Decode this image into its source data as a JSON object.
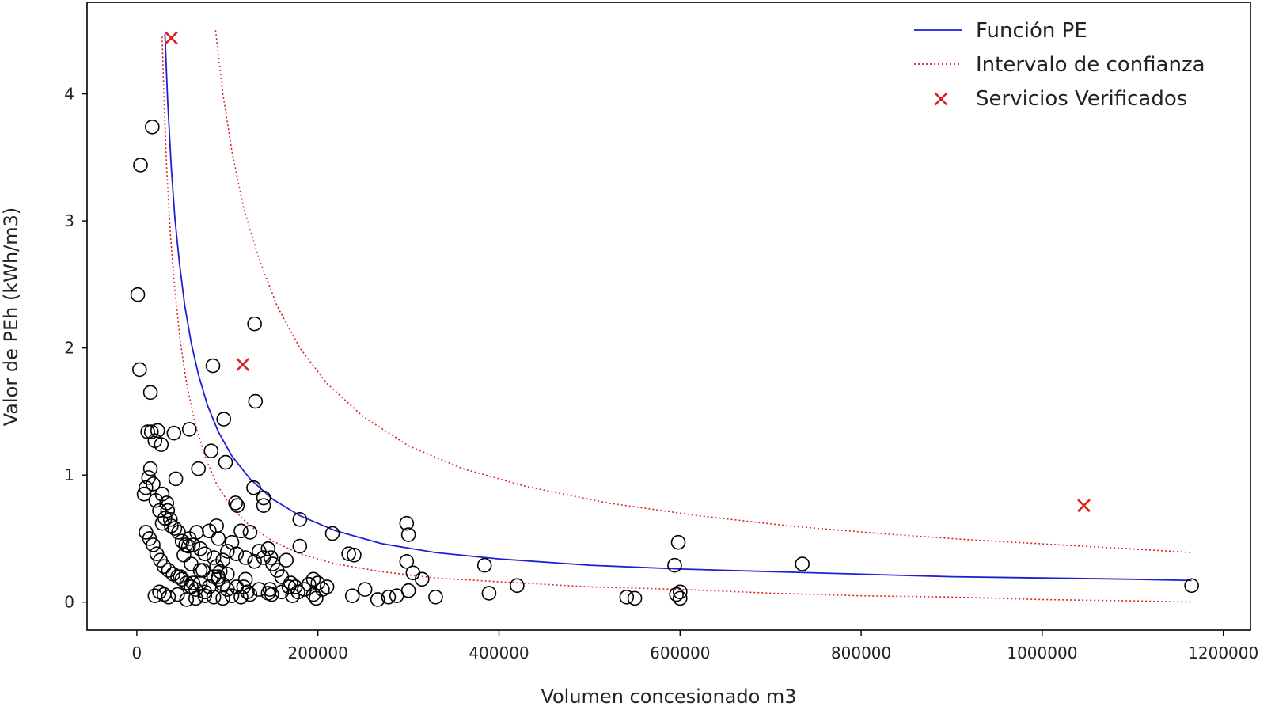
{
  "chart_data": {
    "type": "scatter",
    "xlabel": "Volumen concesionado m3",
    "ylabel": "Valor de PEh (kWh/m3)",
    "xlim": [
      -55000,
      1230000
    ],
    "ylim": [
      -0.22,
      4.72
    ],
    "x_ticks": [
      0,
      200000,
      400000,
      600000,
      800000,
      1000000,
      1200000
    ],
    "y_ticks": [
      0,
      1,
      2,
      3,
      4
    ],
    "grid": false,
    "legend_position": "top-right",
    "series": [
      {
        "name": "Función PE",
        "kind": "line",
        "style": "solid",
        "color": "#1f1fd6",
        "x": [
          31000,
          34000,
          38000,
          42000,
          47000,
          53000,
          60000,
          68000,
          78000,
          90000,
          105000,
          125000,
          150000,
          180000,
          220000,
          270000,
          330000,
          400000,
          500000,
          600000,
          700000,
          800000,
          900000,
          1000000,
          1100000,
          1165000
        ],
        "y": [
          4.47,
          3.95,
          3.42,
          3.02,
          2.67,
          2.33,
          2.04,
          1.79,
          1.55,
          1.34,
          1.15,
          0.97,
          0.81,
          0.68,
          0.56,
          0.46,
          0.39,
          0.34,
          0.29,
          0.26,
          0.24,
          0.22,
          0.2,
          0.19,
          0.18,
          0.17
        ]
      },
      {
        "name": "Intervalo de confianza",
        "kind": "line",
        "style": "dotted",
        "color": "#e02020",
        "x": [
          87000,
          95000,
          105000,
          118000,
          135000,
          155000,
          180000,
          210000,
          250000,
          300000,
          360000,
          430000,
          520000,
          620000,
          720000,
          820000,
          920000,
          1020000,
          1120000,
          1165000
        ],
        "y": [
          4.5,
          4.0,
          3.55,
          3.1,
          2.7,
          2.33,
          2.0,
          1.72,
          1.46,
          1.23,
          1.05,
          0.91,
          0.78,
          0.68,
          0.6,
          0.54,
          0.49,
          0.45,
          0.41,
          0.39
        ]
      },
      {
        "name": "",
        "kind": "line",
        "style": "dotted",
        "color": "#e02020",
        "x": [
          28000,
          30000,
          33000,
          37000,
          42000,
          48000,
          55000,
          64000,
          75000,
          88000,
          105000,
          125000,
          150000,
          180000,
          220000,
          270000,
          330000,
          400000,
          500000,
          600000,
          700000,
          800000,
          900000,
          1000000,
          1100000,
          1165000
        ],
        "y": [
          4.45,
          3.95,
          3.4,
          2.9,
          2.45,
          2.05,
          1.72,
          1.42,
          1.15,
          0.93,
          0.74,
          0.6,
          0.48,
          0.38,
          0.3,
          0.24,
          0.19,
          0.16,
          0.12,
          0.1,
          0.07,
          0.05,
          0.04,
          0.02,
          0.01,
          0.0
        ]
      },
      {
        "name": "Servicios Verificados",
        "kind": "marker-x",
        "color": "#e02020",
        "x": [
          38000,
          117000,
          1046000
        ],
        "y": [
          4.44,
          1.87,
          0.76
        ]
      },
      {
        "name": "",
        "kind": "marker-circle",
        "color": "#000000",
        "x": [
          17000,
          4000,
          1000,
          3000,
          15000,
          12000,
          16000,
          20000,
          23000,
          27000,
          41000,
          58000,
          8000,
          10000,
          13000,
          15000,
          18000,
          21000,
          25000,
          28000,
          31000,
          34000,
          38000,
          42000,
          46000,
          50000,
          54000,
          58000,
          62000,
          66000,
          70000,
          75000,
          80000,
          85000,
          88000,
          90000,
          95000,
          100000,
          105000,
          110000,
          115000,
          120000,
          125000,
          130000,
          135000,
          140000,
          145000,
          150000,
          155000,
          160000,
          165000,
          170000,
          175000,
          180000,
          185000,
          190000,
          195000,
          200000,
          205000,
          210000,
          10000,
          14000,
          18000,
          22000,
          26000,
          30000,
          35000,
          40000,
          45000,
          50000,
          55000,
          60000,
          65000,
          70000,
          75000,
          80000,
          85000,
          90000,
          95000,
          100000,
          20000,
          25000,
          30000,
          35000,
          45000,
          55000,
          65000,
          75000,
          85000,
          95000,
          105000,
          115000,
          125000,
          84000,
          130000,
          131000,
          96000,
          82000,
          68000,
          98000,
          109000,
          111000,
          129000,
          140000,
          140000,
          43000,
          180000,
          216000,
          148000,
          147000,
          149000,
          160000,
          168000,
          178000,
          195000,
          298000,
          300000,
          298000,
          305000,
          315000,
          330000,
          300000,
          234000,
          240000,
          238000,
          252000,
          266000,
          278000,
          287000,
          384000,
          389000,
          420000,
          541000,
          550000,
          594000,
          598000,
          600000,
          596000,
          600000,
          735000,
          1165000,
          60000,
          70000,
          100000,
          120000,
          88000,
          92000,
          52000,
          57000,
          37000,
          48000,
          73000,
          110000,
          122000,
          145000,
          172000,
          198000,
          135000,
          118000,
          90000,
          62000,
          28000,
          33000
        ],
        "y": [
          3.74,
          3.44,
          2.42,
          1.83,
          1.65,
          1.34,
          1.34,
          1.27,
          1.35,
          1.24,
          1.33,
          1.36,
          0.85,
          0.9,
          0.98,
          1.05,
          0.93,
          0.8,
          0.72,
          0.85,
          0.66,
          0.72,
          0.6,
          0.58,
          0.55,
          0.48,
          0.45,
          0.5,
          0.45,
          0.55,
          0.42,
          0.38,
          0.56,
          0.35,
          0.6,
          0.5,
          0.33,
          0.4,
          0.47,
          0.38,
          0.56,
          0.35,
          0.55,
          0.32,
          0.4,
          0.35,
          0.42,
          0.3,
          0.25,
          0.2,
          0.33,
          0.15,
          0.12,
          0.44,
          0.1,
          0.14,
          0.18,
          0.15,
          0.1,
          0.12,
          0.55,
          0.5,
          0.45,
          0.38,
          0.33,
          0.28,
          0.25,
          0.22,
          0.2,
          0.18,
          0.15,
          0.12,
          0.1,
          0.15,
          0.08,
          0.12,
          0.2,
          0.18,
          0.14,
          0.1,
          0.05,
          0.08,
          0.06,
          0.04,
          0.06,
          0.02,
          0.03,
          0.05,
          0.04,
          0.03,
          0.05,
          0.04,
          0.06,
          1.86,
          2.19,
          1.58,
          1.44,
          1.19,
          1.05,
          1.1,
          0.78,
          0.76,
          0.9,
          0.82,
          0.76,
          0.97,
          0.65,
          0.54,
          0.35,
          0.1,
          0.06,
          0.08,
          0.12,
          0.08,
          0.06,
          0.62,
          0.53,
          0.32,
          0.23,
          0.18,
          0.04,
          0.09,
          0.38,
          0.37,
          0.05,
          0.1,
          0.02,
          0.04,
          0.05,
          0.29,
          0.07,
          0.13,
          0.04,
          0.03,
          0.29,
          0.47,
          0.08,
          0.06,
          0.03,
          0.3,
          0.13,
          0.3,
          0.25,
          0.22,
          0.18,
          0.28,
          0.24,
          0.37,
          0.44,
          0.65,
          0.2,
          0.25,
          0.12,
          0.08,
          0.07,
          0.05,
          0.03,
          0.1,
          0.12,
          0.2,
          0.15,
          0.62,
          0.78
        ]
      }
    ]
  }
}
